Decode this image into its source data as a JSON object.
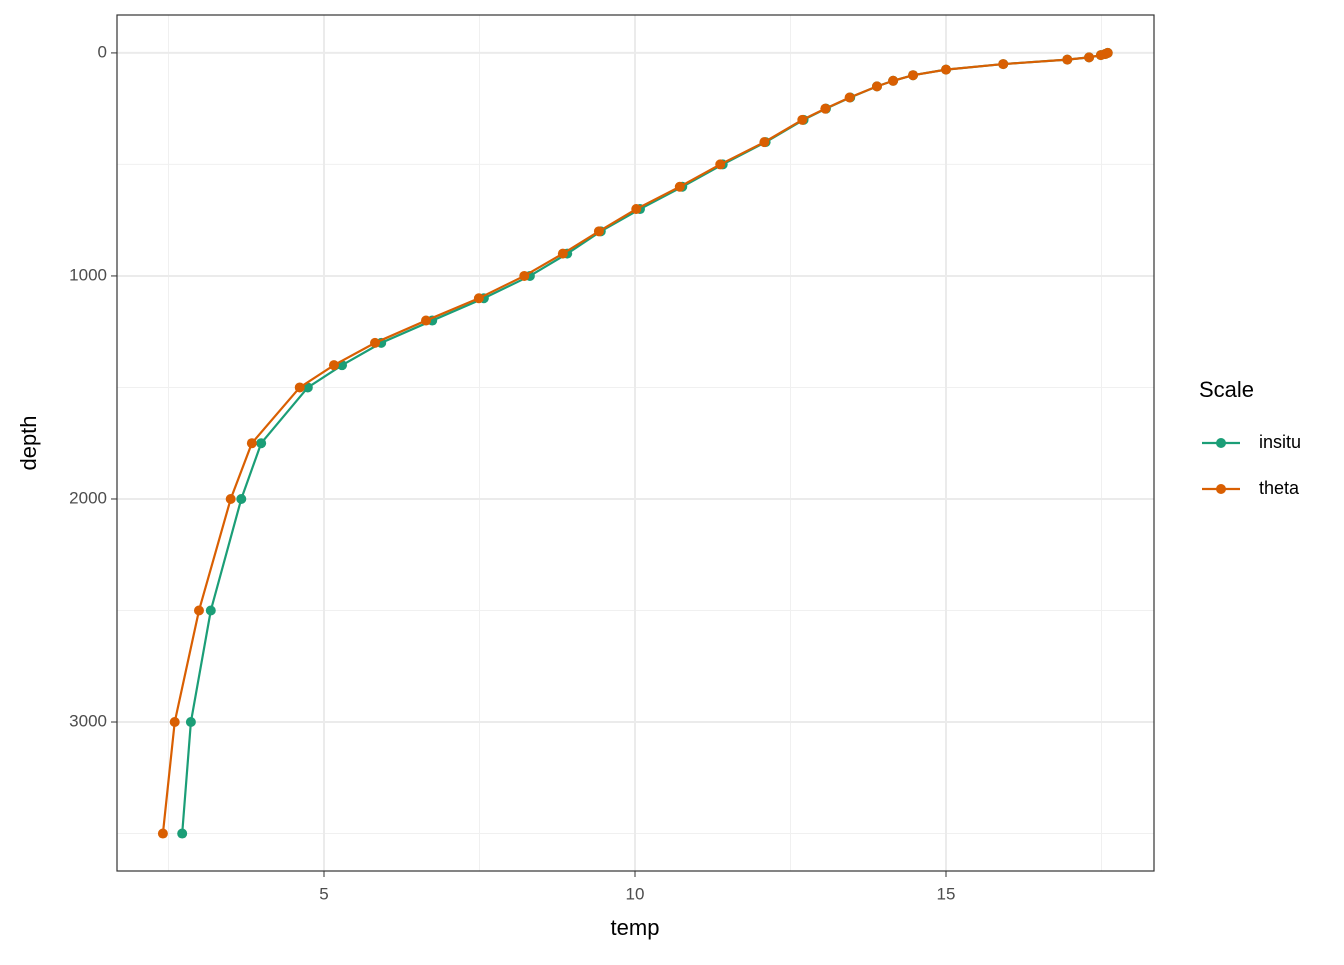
{
  "chart_data": {
    "type": "line",
    "x_label": "temp",
    "y_label": "depth",
    "y": [
      0,
      5,
      10,
      20,
      30,
      50,
      75,
      100,
      125,
      150,
      200,
      250,
      300,
      400,
      500,
      600,
      700,
      800,
      900,
      1000,
      1100,
      1200,
      1300,
      1400,
      1500,
      1750,
      2000,
      2500,
      3000,
      3500
    ],
    "series": [
      {
        "name": "insitu",
        "color": "#1b9e77",
        "x": [
          17.6,
          17.56,
          17.49,
          17.3,
          16.95,
          15.92,
          15.0,
          14.47,
          14.15,
          13.89,
          13.46,
          13.07,
          12.71,
          12.1,
          11.41,
          10.76,
          10.08,
          9.45,
          8.91,
          8.31,
          7.57,
          6.74,
          5.92,
          5.29,
          4.74,
          3.99,
          3.67,
          3.18,
          2.86,
          2.72
        ]
      },
      {
        "name": "theta",
        "color": "#d95f02",
        "x": [
          17.6,
          17.56,
          17.49,
          17.3,
          16.95,
          15.92,
          15.0,
          14.47,
          14.15,
          13.89,
          13.45,
          13.06,
          12.69,
          12.08,
          11.37,
          10.72,
          10.02,
          9.42,
          8.84,
          8.22,
          7.49,
          6.64,
          5.82,
          5.16,
          4.61,
          3.84,
          3.5,
          2.99,
          2.6,
          2.41
        ]
      }
    ],
    "legend_title": "Scale",
    "legend_position": "right",
    "xlim": [
      1.672,
      18.344
    ],
    "xticks": [
      5,
      10,
      15
    ],
    "ylim": [
      -170,
      3668
    ],
    "yticks": [
      0,
      1000,
      2000,
      3000
    ],
    "y_reversed": true,
    "grid": true
  }
}
